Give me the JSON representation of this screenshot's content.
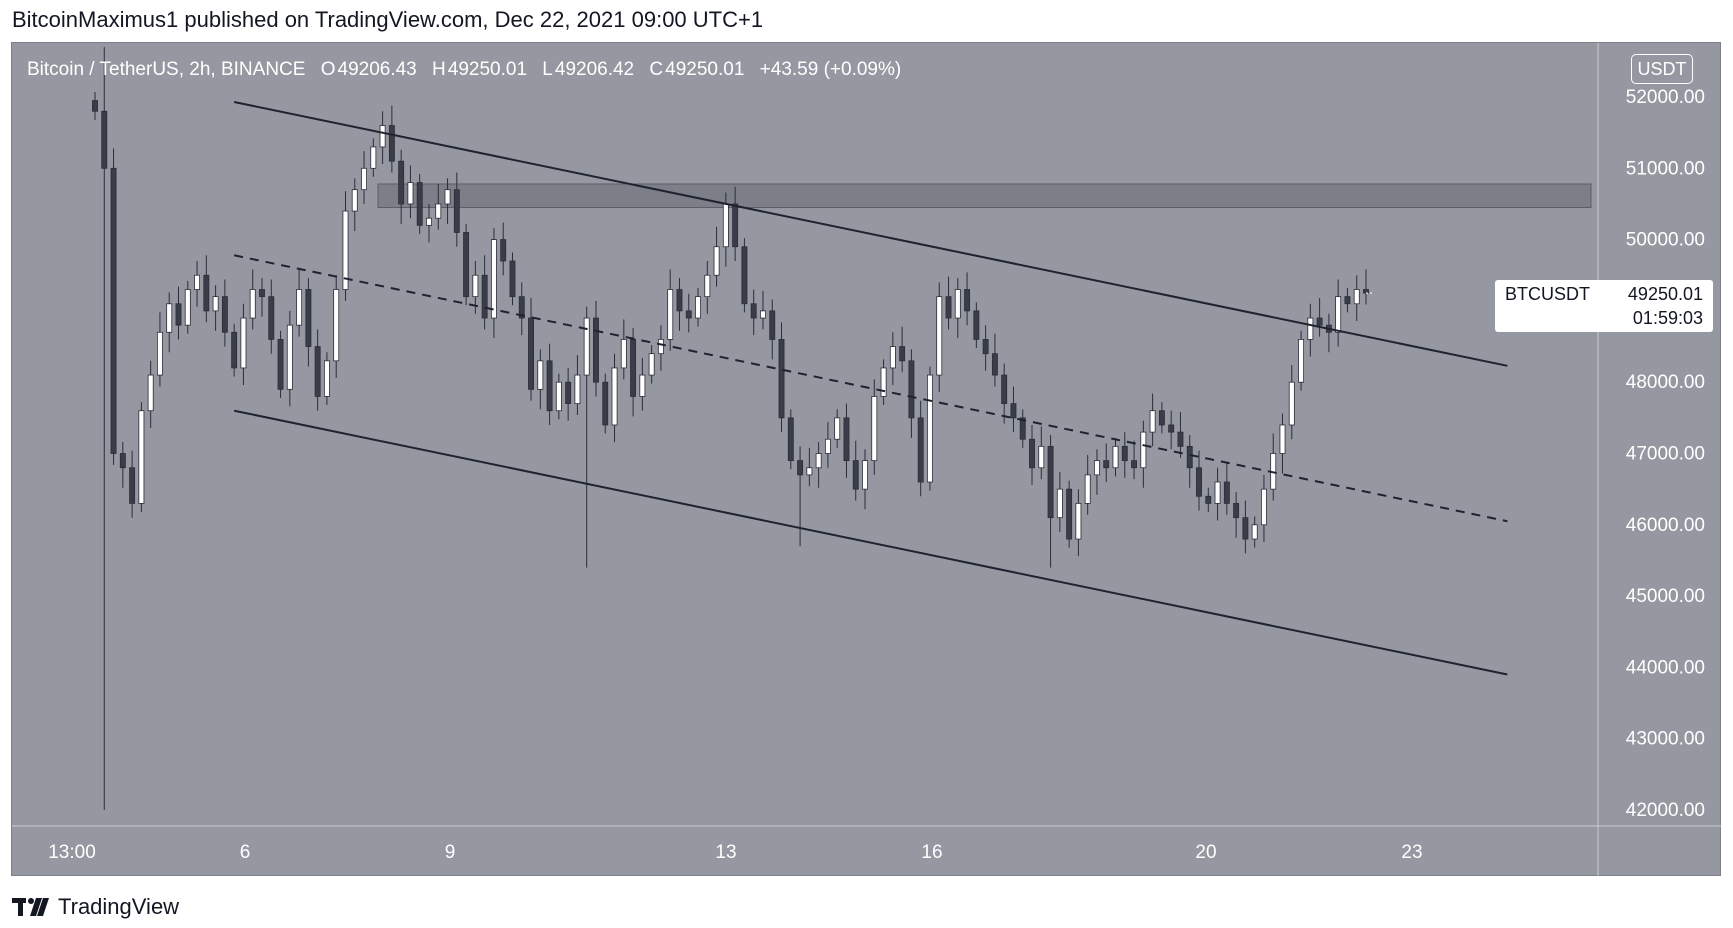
{
  "header": {
    "text": "BitcoinMaximus1 published on TradingView.com, Dec 22, 2021 09:00 UTC+1"
  },
  "legend": {
    "symbol": "Bitcoin / TetherUS, 2h, BINANCE",
    "open_label": "O",
    "open": "49206.43",
    "high_label": "H",
    "high": "49250.01",
    "low_label": "L",
    "low": "49206.42",
    "close_label": "C",
    "close": "49250.01",
    "change": "+43.59 (+0.09%)"
  },
  "currency": "USDT",
  "price_tag": {
    "symbol": "BTCUSDT",
    "price": "49250.01",
    "countdown": "01:59:03"
  },
  "footer": {
    "brand": "TradingView"
  },
  "colors": {
    "background": "#9598a1",
    "candle_body": "#ffffff",
    "wick": "#2a2e39",
    "line": "#1f2230"
  },
  "chart_data": {
    "type": "candlestick",
    "y_ticks": [
      "52000.00",
      "51000.00",
      "50000.00",
      "48000.00",
      "47000.00",
      "46000.00",
      "45000.00",
      "44000.00",
      "43000.00",
      "42000.00"
    ],
    "x_ticks": [
      "13:00",
      "6",
      "9",
      "13",
      "16",
      "20",
      "23"
    ],
    "ylim": [
      41800,
      52700
    ],
    "resistance_zone": [
      50450,
      50780
    ],
    "channel": {
      "upper": [
        {
          "x": 0.13,
          "y": 51930
        },
        {
          "x": 0.875,
          "y": 48230
        }
      ],
      "middle": [
        {
          "x": 0.13,
          "y": 49780
        },
        {
          "x": 0.875,
          "y": 46050
        }
      ],
      "lower": [
        {
          "x": 0.13,
          "y": 47600
        },
        {
          "x": 0.875,
          "y": 43900
        }
      ]
    },
    "closes": [
      51800,
      51000,
      47000,
      46800,
      46300,
      47600,
      48100,
      48700,
      49100,
      48800,
      49300,
      49500,
      49000,
      49200,
      48700,
      48200,
      48900,
      49300,
      49200,
      48600,
      47900,
      48800,
      49300,
      48500,
      47800,
      48300,
      49300,
      50400,
      50700,
      51000,
      51300,
      51600,
      51100,
      50500,
      50800,
      50200,
      50300,
      50500,
      50700,
      50100,
      49200,
      49500,
      48900,
      50000,
      49700,
      49200,
      48900,
      47900,
      48300,
      47600,
      48000,
      47700,
      48100,
      48900,
      48000,
      47400,
      48200,
      48600,
      47800,
      48100,
      48400,
      48600,
      49300,
      49000,
      48900,
      49200,
      49500,
      49900,
      50500,
      49900,
      49100,
      48900,
      49000,
      48600,
      47500,
      46900,
      46700,
      46800,
      47000,
      47200,
      47500,
      46900,
      46500,
      46900,
      47800,
      48200,
      48500,
      48300,
      47500,
      46600,
      48100,
      49200,
      48900,
      49300,
      49000,
      48600,
      48400,
      48100,
      47700,
      47500,
      47200,
      46800,
      47100,
      46100,
      46500,
      45800,
      46300,
      46700,
      46900,
      46800,
      47100,
      46900,
      46800,
      47300,
      47600,
      47400,
      47300,
      47100,
      46800,
      46400,
      46300,
      46600,
      46300,
      46100,
      45800,
      46000,
      46500,
      47000,
      47400,
      48000,
      48600,
      48900,
      48800,
      48700,
      49200,
      49100,
      49300,
      49250
    ]
  }
}
